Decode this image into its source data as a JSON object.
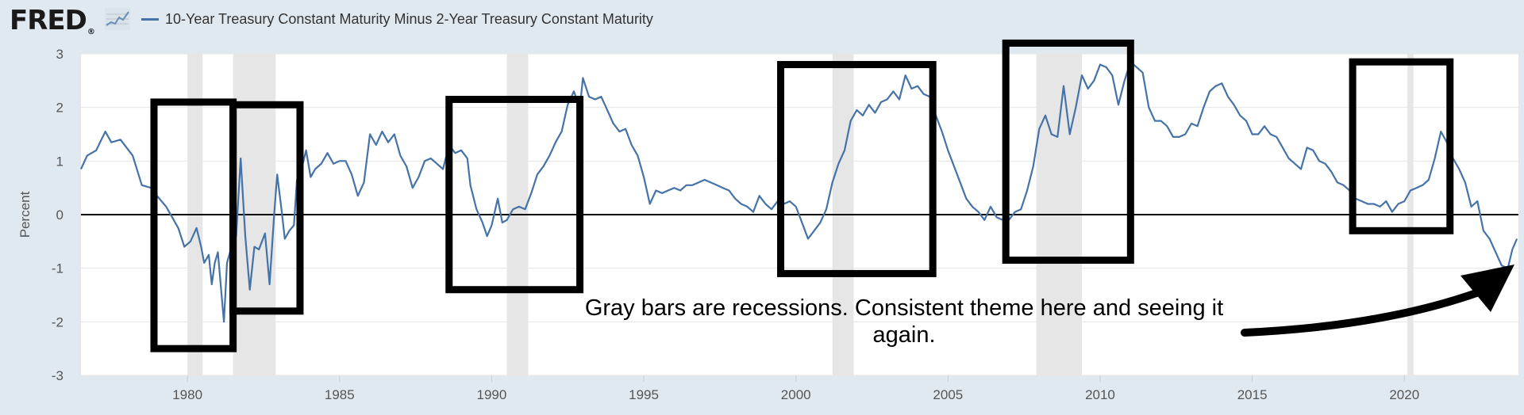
{
  "header": {
    "logo_text": "FRED",
    "logo_mark": "®",
    "icon": "mini-line-chart-icon",
    "legend_label": "10-Year Treasury Constant Maturity Minus 2-Year Treasury Constant Maturity"
  },
  "colors": {
    "background": "#e1e9f0",
    "plot_background": "#ffffff",
    "series": "#4572a7",
    "recession": "#e6e6e6",
    "zero_line": "#000000",
    "annotation": "#000000"
  },
  "chart_data": {
    "type": "line",
    "title": "",
    "xlabel": "",
    "ylabel": "Percent",
    "xlim": [
      1976.5,
      2023.75
    ],
    "ylim": [
      -3,
      3
    ],
    "grid": true,
    "x_ticks": [
      1980,
      1985,
      1990,
      1995,
      2000,
      2005,
      2010,
      2015,
      2020
    ],
    "y_ticks": [
      3,
      2,
      1,
      0,
      -1,
      -2,
      -3
    ],
    "recessions": [
      [
        1980.0,
        1980.5
      ],
      [
        1981.5,
        1982.9
      ],
      [
        1990.5,
        1991.2
      ],
      [
        2001.2,
        2001.9
      ],
      [
        2007.9,
        2009.4
      ],
      [
        2020.1,
        2020.3
      ]
    ],
    "series": [
      {
        "name": "10-Year Treasury Constant Maturity Minus 2-Year Treasury Constant Maturity",
        "points": [
          [
            1976.5,
            0.85
          ],
          [
            1976.7,
            1.1
          ],
          [
            1977.0,
            1.2
          ],
          [
            1977.3,
            1.55
          ],
          [
            1977.5,
            1.35
          ],
          [
            1977.8,
            1.4
          ],
          [
            1978.0,
            1.25
          ],
          [
            1978.2,
            1.1
          ],
          [
            1978.5,
            0.55
          ],
          [
            1978.8,
            0.5
          ],
          [
            1979.0,
            0.35
          ],
          [
            1979.3,
            0.15
          ],
          [
            1979.5,
            -0.05
          ],
          [
            1979.7,
            -0.25
          ],
          [
            1979.9,
            -0.6
          ],
          [
            1980.1,
            -0.5
          ],
          [
            1980.3,
            -0.25
          ],
          [
            1980.45,
            -0.6
          ],
          [
            1980.55,
            -0.9
          ],
          [
            1980.7,
            -0.75
          ],
          [
            1980.8,
            -1.3
          ],
          [
            1980.9,
            -0.9
          ],
          [
            1981.0,
            -0.7
          ],
          [
            1981.2,
            -2.0
          ],
          [
            1981.3,
            -0.9
          ],
          [
            1981.45,
            -0.6
          ],
          [
            1981.6,
            -0.4
          ],
          [
            1981.75,
            1.05
          ],
          [
            1981.9,
            -0.4
          ],
          [
            1982.05,
            -1.4
          ],
          [
            1982.2,
            -0.6
          ],
          [
            1982.35,
            -0.65
          ],
          [
            1982.55,
            -0.35
          ],
          [
            1982.7,
            -1.3
          ],
          [
            1982.85,
            0.0
          ],
          [
            1982.95,
            0.75
          ],
          [
            1983.1,
            0.05
          ],
          [
            1983.2,
            -0.45
          ],
          [
            1983.35,
            -0.3
          ],
          [
            1983.5,
            -0.2
          ],
          [
            1983.6,
            0.65
          ],
          [
            1983.75,
            0.85
          ],
          [
            1983.9,
            1.2
          ],
          [
            1984.05,
            0.7
          ],
          [
            1984.2,
            0.85
          ],
          [
            1984.4,
            0.95
          ],
          [
            1984.6,
            1.15
          ],
          [
            1984.8,
            0.95
          ],
          [
            1985.0,
            1.0
          ],
          [
            1985.2,
            1.0
          ],
          [
            1985.4,
            0.75
          ],
          [
            1985.6,
            0.35
          ],
          [
            1985.8,
            0.6
          ],
          [
            1986.0,
            1.5
          ],
          [
            1986.2,
            1.3
          ],
          [
            1986.4,
            1.55
          ],
          [
            1986.6,
            1.35
          ],
          [
            1986.8,
            1.5
          ],
          [
            1987.0,
            1.1
          ],
          [
            1987.2,
            0.9
          ],
          [
            1987.4,
            0.5
          ],
          [
            1987.6,
            0.7
          ],
          [
            1987.8,
            1.0
          ],
          [
            1988.0,
            1.05
          ],
          [
            1988.2,
            0.95
          ],
          [
            1988.4,
            0.85
          ],
          [
            1988.6,
            1.3
          ],
          [
            1988.8,
            1.15
          ],
          [
            1989.0,
            1.2
          ],
          [
            1989.2,
            1.05
          ],
          [
            1989.3,
            0.55
          ],
          [
            1989.5,
            0.1
          ],
          [
            1989.7,
            -0.15
          ],
          [
            1989.85,
            -0.4
          ],
          [
            1990.0,
            -0.2
          ],
          [
            1990.2,
            0.3
          ],
          [
            1990.35,
            -0.15
          ],
          [
            1990.5,
            -0.1
          ],
          [
            1990.7,
            0.1
          ],
          [
            1990.9,
            0.15
          ],
          [
            1991.1,
            0.1
          ],
          [
            1991.3,
            0.4
          ],
          [
            1991.5,
            0.75
          ],
          [
            1991.7,
            0.9
          ],
          [
            1991.9,
            1.1
          ],
          [
            1992.1,
            1.35
          ],
          [
            1992.3,
            1.55
          ],
          [
            1992.5,
            2.05
          ],
          [
            1992.7,
            2.3
          ],
          [
            1992.9,
            2.0
          ],
          [
            1993.0,
            2.55
          ],
          [
            1993.2,
            2.2
          ],
          [
            1993.4,
            2.15
          ],
          [
            1993.6,
            2.2
          ],
          [
            1993.8,
            1.95
          ],
          [
            1994.0,
            1.7
          ],
          [
            1994.2,
            1.55
          ],
          [
            1994.4,
            1.6
          ],
          [
            1994.6,
            1.3
          ],
          [
            1994.8,
            1.1
          ],
          [
            1995.0,
            0.7
          ],
          [
            1995.2,
            0.2
          ],
          [
            1995.4,
            0.45
          ],
          [
            1995.6,
            0.4
          ],
          [
            1995.8,
            0.45
          ],
          [
            1996.0,
            0.5
          ],
          [
            1996.2,
            0.45
          ],
          [
            1996.4,
            0.55
          ],
          [
            1996.6,
            0.55
          ],
          [
            1996.8,
            0.6
          ],
          [
            1997.0,
            0.65
          ],
          [
            1997.2,
            0.6
          ],
          [
            1997.4,
            0.55
          ],
          [
            1997.6,
            0.5
          ],
          [
            1997.8,
            0.45
          ],
          [
            1998.0,
            0.3
          ],
          [
            1998.2,
            0.2
          ],
          [
            1998.4,
            0.15
          ],
          [
            1998.6,
            0.05
          ],
          [
            1998.8,
            0.35
          ],
          [
            1999.0,
            0.2
          ],
          [
            1999.2,
            0.1
          ],
          [
            1999.4,
            0.25
          ],
          [
            1999.6,
            0.2
          ],
          [
            1999.8,
            0.25
          ],
          [
            2000.0,
            0.15
          ],
          [
            2000.2,
            -0.15
          ],
          [
            2000.4,
            -0.45
          ],
          [
            2000.6,
            -0.3
          ],
          [
            2000.8,
            -0.15
          ],
          [
            2001.0,
            0.1
          ],
          [
            2001.2,
            0.6
          ],
          [
            2001.4,
            0.95
          ],
          [
            2001.6,
            1.2
          ],
          [
            2001.8,
            1.75
          ],
          [
            2002.0,
            1.95
          ],
          [
            2002.2,
            1.85
          ],
          [
            2002.4,
            2.05
          ],
          [
            2002.6,
            1.9
          ],
          [
            2002.8,
            2.1
          ],
          [
            2003.0,
            2.15
          ],
          [
            2003.2,
            2.3
          ],
          [
            2003.4,
            2.15
          ],
          [
            2003.6,
            2.6
          ],
          [
            2003.8,
            2.35
          ],
          [
            2004.0,
            2.4
          ],
          [
            2004.2,
            2.25
          ],
          [
            2004.4,
            2.2
          ],
          [
            2004.6,
            1.85
          ],
          [
            2004.8,
            1.55
          ],
          [
            2005.0,
            1.2
          ],
          [
            2005.2,
            0.9
          ],
          [
            2005.4,
            0.6
          ],
          [
            2005.6,
            0.3
          ],
          [
            2005.8,
            0.15
          ],
          [
            2006.0,
            0.05
          ],
          [
            2006.2,
            -0.1
          ],
          [
            2006.4,
            0.15
          ],
          [
            2006.6,
            -0.05
          ],
          [
            2006.8,
            -0.1
          ],
          [
            2007.0,
            -0.1
          ],
          [
            2007.2,
            0.05
          ],
          [
            2007.4,
            0.1
          ],
          [
            2007.6,
            0.45
          ],
          [
            2007.8,
            0.9
          ],
          [
            2008.0,
            1.6
          ],
          [
            2008.2,
            1.85
          ],
          [
            2008.4,
            1.5
          ],
          [
            2008.6,
            1.45
          ],
          [
            2008.8,
            2.4
          ],
          [
            2009.0,
            1.5
          ],
          [
            2009.2,
            2.0
          ],
          [
            2009.4,
            2.6
          ],
          [
            2009.6,
            2.35
          ],
          [
            2009.8,
            2.5
          ],
          [
            2010.0,
            2.8
          ],
          [
            2010.2,
            2.75
          ],
          [
            2010.4,
            2.6
          ],
          [
            2010.6,
            2.05
          ],
          [
            2010.8,
            2.5
          ],
          [
            2011.0,
            2.85
          ],
          [
            2011.2,
            2.75
          ],
          [
            2011.4,
            2.65
          ],
          [
            2011.6,
            2.0
          ],
          [
            2011.8,
            1.75
          ],
          [
            2012.0,
            1.75
          ],
          [
            2012.2,
            1.65
          ],
          [
            2012.4,
            1.45
          ],
          [
            2012.6,
            1.45
          ],
          [
            2012.8,
            1.5
          ],
          [
            2013.0,
            1.7
          ],
          [
            2013.2,
            1.65
          ],
          [
            2013.4,
            2.0
          ],
          [
            2013.6,
            2.3
          ],
          [
            2013.8,
            2.4
          ],
          [
            2014.0,
            2.45
          ],
          [
            2014.2,
            2.2
          ],
          [
            2014.4,
            2.05
          ],
          [
            2014.6,
            1.85
          ],
          [
            2014.8,
            1.75
          ],
          [
            2015.0,
            1.5
          ],
          [
            2015.2,
            1.5
          ],
          [
            2015.4,
            1.65
          ],
          [
            2015.6,
            1.5
          ],
          [
            2015.8,
            1.45
          ],
          [
            2016.0,
            1.25
          ],
          [
            2016.2,
            1.05
          ],
          [
            2016.4,
            0.95
          ],
          [
            2016.6,
            0.85
          ],
          [
            2016.8,
            1.25
          ],
          [
            2017.0,
            1.2
          ],
          [
            2017.2,
            1.0
          ],
          [
            2017.4,
            0.95
          ],
          [
            2017.6,
            0.8
          ],
          [
            2017.8,
            0.6
          ],
          [
            2018.0,
            0.55
          ],
          [
            2018.2,
            0.45
          ],
          [
            2018.4,
            0.3
          ],
          [
            2018.6,
            0.25
          ],
          [
            2018.8,
            0.2
          ],
          [
            2019.0,
            0.2
          ],
          [
            2019.2,
            0.15
          ],
          [
            2019.4,
            0.25
          ],
          [
            2019.6,
            0.05
          ],
          [
            2019.8,
            0.2
          ],
          [
            2020.0,
            0.25
          ],
          [
            2020.2,
            0.45
          ],
          [
            2020.4,
            0.5
          ],
          [
            2020.6,
            0.55
          ],
          [
            2020.8,
            0.65
          ],
          [
            2021.0,
            1.05
          ],
          [
            2021.2,
            1.55
          ],
          [
            2021.4,
            1.35
          ],
          [
            2021.6,
            1.05
          ],
          [
            2021.8,
            0.85
          ],
          [
            2022.0,
            0.6
          ],
          [
            2022.2,
            0.15
          ],
          [
            2022.4,
            0.25
          ],
          [
            2022.6,
            -0.3
          ],
          [
            2022.8,
            -0.45
          ],
          [
            2023.0,
            -0.7
          ],
          [
            2023.2,
            -0.95
          ],
          [
            2023.4,
            -1.0
          ],
          [
            2023.55,
            -0.65
          ],
          [
            2023.7,
            -0.45
          ]
        ]
      }
    ]
  },
  "annotations": {
    "text": "Gray bars are recessions. Consistent theme here and seeing it again.",
    "boxes": [
      {
        "x0": 1978.9,
        "x1": 1981.5,
        "y0": -2.5,
        "y1": 2.1
      },
      {
        "x0": 1981.5,
        "x1": 1983.7,
        "y0": -1.8,
        "y1": 2.05
      },
      {
        "x0": 1988.6,
        "x1": 1992.9,
        "y0": -1.4,
        "y1": 2.15
      },
      {
        "x0": 1999.5,
        "x1": 2004.5,
        "y0": -1.1,
        "y1": 2.8
      },
      {
        "x0": 2006.9,
        "x1": 2011.0,
        "y0": -0.85,
        "y1": 3.2
      },
      {
        "x0": 2018.3,
        "x1": 2021.5,
        "y0": -0.3,
        "y1": 2.85
      }
    ]
  }
}
